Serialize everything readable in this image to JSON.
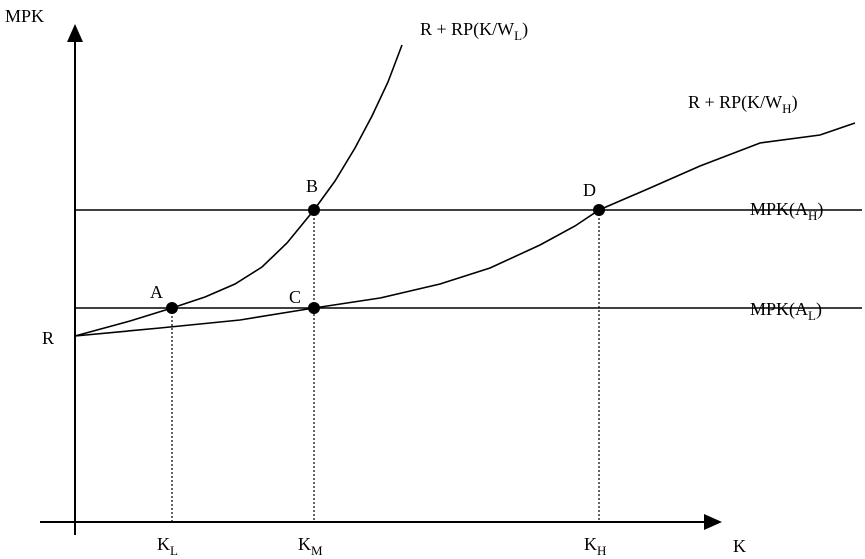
{
  "axes": {
    "y_label": "MPK",
    "x_label": "K",
    "origin_label": "R"
  },
  "curves": [
    {
      "text": "R + RP(K/W",
      "sub": "L",
      "tail": ")"
    },
    {
      "text": "R + RP(K/W",
      "sub": "H",
      "tail": ")"
    }
  ],
  "lines": [
    {
      "text": "MPK(A",
      "sub": "H",
      "tail": ")"
    },
    {
      "text": "MPK(A",
      "sub": "L",
      "tail": ")"
    }
  ],
  "points": [
    "A",
    "B",
    "C",
    "D"
  ],
  "x_marks": [
    {
      "text": "K",
      "sub": "L"
    },
    {
      "text": "K",
      "sub": "M"
    },
    {
      "text": "K",
      "sub": "H"
    }
  ]
}
